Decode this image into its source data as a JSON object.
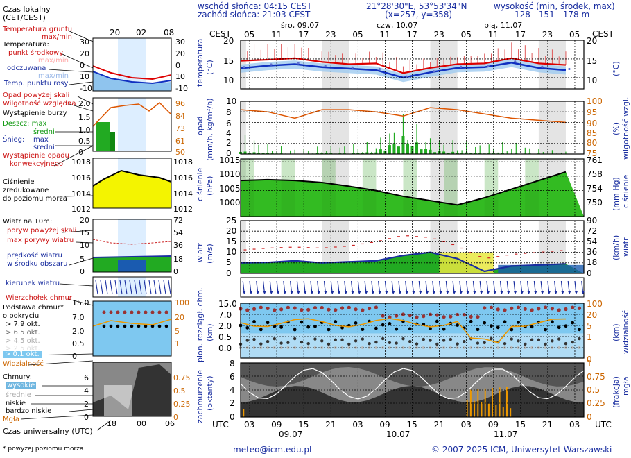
{
  "header": {
    "sunrise": "wschód słońca: 04:15 CEST",
    "sunset": "zachód słońca: 21:03 CEST",
    "coords": "21°28'30\"E, 53°53'34\"N",
    "grid": "(x=257, y=358)",
    "elev_title": "wysokość (min, środek, max)",
    "elev_values": "128 - 151 - 178 m"
  },
  "time": {
    "top_label": "CEST",
    "days_top": [
      "śro, 09.07",
      "czw, 10.07",
      "pią, 11.07"
    ],
    "hours_top": [
      "05",
      "11",
      "17",
      "23",
      "05",
      "11",
      "17",
      "23",
      "05",
      "11",
      "17",
      "23",
      "05"
    ],
    "bottom_label": "UTC",
    "hours_bottom": [
      "03",
      "09",
      "15",
      "21",
      "03",
      "09",
      "15",
      "21",
      "03",
      "09",
      "15",
      "21",
      "03"
    ],
    "days_bottom": [
      "09.07",
      "10.07",
      "11.07"
    ]
  },
  "legend": {
    "local_time": "Czas lokalny",
    "local_time2": "(CET/CEST)",
    "local_ticks": [
      "20",
      "02",
      "08"
    ],
    "soil_temp": "Temperatura gruntu",
    "soil_temp2": "max/min",
    "temperature": "Temperatura:",
    "midpoint": "punkt środkowy",
    "maxmin": "max/min",
    "feels": "odczuwana",
    "feels_maxmin": "max/min",
    "dewpoint": "Temp. punktu rosy",
    "temp_ticks": [
      "30",
      "20",
      "10",
      "0",
      "-10"
    ],
    "precip_above": "Opad powyżej skali",
    "humidity": "Wilgotność względna",
    "storm": "Wystąpienie burzy",
    "rain": "Deszcz: max",
    "rain_avg": "średni",
    "snow": "Śnieg:",
    "snow_max": "max",
    "snow_avg": "średni",
    "precip_occ": "Wystąpienie opadu",
    "precip_occ2": "konwekcyjnego",
    "precip_ticks": [
      "2.0",
      "1.5",
      "1.0",
      "0.5",
      "0"
    ],
    "hum_ticks": [
      "96",
      "84",
      "73",
      "61",
      "50"
    ],
    "pressure": "Ciśnienie",
    "pressure2": "zredukowane",
    "pressure3": "do poziomu morza",
    "pres_ticks": [
      "1018",
      "1016",
      "1014",
      "1012"
    ],
    "wind_title": "Wiatr na 10m:",
    "gust_above": "poryw powyżej skali",
    "gust_max": "max porywy wiatru",
    "wind_speed": "prędkość wiatru",
    "wind_speed2": "w środku obszaru",
    "wind_ticks": [
      "20",
      "15",
      "10",
      "5",
      "0"
    ],
    "wind_ticks_r": [
      "72",
      "54",
      "36",
      "18",
      "0"
    ],
    "wind_dir": "kierunek wiatru",
    "cloud_top": "Wierzchołek chmur",
    "cloud_base": "Podstawa chmur*",
    "cloud_base2": "o pokryciu",
    "okt1": "> 7.9 okt.",
    "okt2": "> 6.5 okt.",
    "okt3": "> 4.5 okt.",
    "okt4": "> 2.5 okt.",
    "okt5": "> 0.1 okt.",
    "cb_ticks": [
      "15.0",
      "7.0",
      "2.0",
      "0.5",
      "0"
    ],
    "vis_ticks": [
      "100",
      "20",
      "5",
      "1"
    ],
    "visibility": "Widzialność",
    "clouds": "Chmury:",
    "c_high": "wysokie",
    "c_mid": "średnie",
    "c_low": "niskie",
    "c_vlow": "bardzo niskie",
    "fog": "Mgła",
    "cl_ticks": [
      "6",
      "4",
      "2",
      "0"
    ],
    "fog_ticks": [
      "0.75",
      "0.5",
      "0.25",
      "0"
    ],
    "utc_label": "Czas uniwersalny (UTC)",
    "utc_ticks": [
      "18",
      "00",
      "06"
    ],
    "footnote": "* powyżej poziomu morza"
  },
  "axis_titles": {
    "temp": "temperatura",
    "temp_unit": "(°C)",
    "precip": "opad",
    "precip_unit": "(mm/h, kg/m²/h)",
    "hum": "wilgotność wzgl.",
    "hum_unit": "(%)",
    "pres": "ciśnienie",
    "pres_unit": "(hPa)",
    "pres_r": "ciśnienie",
    "pres_r_unit": "(mm Hg)",
    "wind": "wiatr",
    "wind_unit": "(m/s)",
    "wind_r": "wiatr",
    "wind_r_unit": "(km/h)",
    "cloudbase": "pion. rozciągł. chm.",
    "cloudbase_unit": "(km)",
    "vis": "widzialność",
    "vis_unit": "(km)",
    "cover": "zachmurzenie",
    "cover_unit": "(oktanty)",
    "fog": "mgła",
    "fog_unit": "(frakcja)"
  },
  "ticks": {
    "temp_l": [
      "20",
      "15",
      "10"
    ],
    "temp_r": [
      "20",
      "15",
      "10"
    ],
    "precip_l": [
      "10",
      "8",
      "6",
      "4",
      "2",
      "0"
    ],
    "hum_r": [
      "100",
      "95",
      "90",
      "85",
      "80",
      "75"
    ],
    "pres_l": [
      "1015",
      "1010",
      "1005",
      "1000"
    ],
    "pres_r": [
      "761",
      "758",
      "754",
      "750"
    ],
    "wind_l": [
      "25",
      "20",
      "15",
      "10",
      "5",
      "0"
    ],
    "wind_r": [
      "90",
      "72",
      "54",
      "36",
      "18",
      "0"
    ],
    "cb_l": [
      "15.0",
      "7.0",
      "2.0",
      "0.5",
      "0.0"
    ],
    "vis_r": [
      "100",
      "20",
      "5",
      "1",
      "0"
    ],
    "cov_l": [
      "8",
      "6",
      "4",
      "2",
      "0"
    ],
    "fog_r": [
      "1",
      "0.75",
      "0.5",
      "0.25",
      "0"
    ]
  },
  "footer": {
    "email": "meteo@icm.edu.pl",
    "copyright": "© 2007-2025 ICM, Uniwersytet Warszawski"
  },
  "colors": {
    "temp_red": "#dd0000",
    "feels_blue": "#1030c0",
    "precip_green": "#22aa22",
    "humidity_orange": "#dd5500",
    "pressure_green": "#33bb22",
    "wind_green": "#22aa22",
    "cloud_top_red": "#993333",
    "vis_orange": "#ee9900",
    "sky_blue": "#7ec8f0"
  },
  "chart_data": [
    {
      "type": "line",
      "title": "temperatura",
      "ylabel": "(°C)",
      "ylim": [
        7,
        20
      ],
      "x_hours": [
        0,
        6,
        12,
        18,
        24,
        30,
        36,
        42,
        48,
        54,
        60,
        66,
        72
      ],
      "series": [
        {
          "name": "punkt środkowy",
          "values": [
            14.5,
            14.8,
            15.2,
            14.2,
            13.6,
            13.8,
            11.2,
            12.6,
            13.6,
            13.8,
            15.2,
            13.8,
            13.4
          ]
        },
        {
          "name": "odczuwana",
          "values": [
            12.5,
            13.2,
            13.6,
            12.8,
            12.4,
            12.0,
            10.0,
            11.4,
            12.6,
            12.8,
            14.0,
            12.6,
            12.0
          ]
        },
        {
          "name": "max/min",
          "values": [
            19.0,
            19.5,
            20.0,
            18.5,
            17.0,
            17.5,
            15.0,
            16.0,
            17.0,
            17.5,
            20.0,
            18.0,
            17.5
          ]
        }
      ]
    },
    {
      "type": "bar",
      "title": "opad",
      "ylabel": "(mm/h, kg/m²/h)",
      "ylim": [
        0,
        10
      ],
      "x_hours": [
        0,
        6,
        12,
        18,
        24,
        30,
        36,
        42,
        48,
        54,
        60,
        66,
        72
      ],
      "series": [
        {
          "name": "średni",
          "values": [
            0.5,
            0.2,
            0.0,
            0.2,
            0.1,
            0.4,
            3.2,
            0.8,
            0.3,
            0.2,
            0.1,
            0.1,
            0.0
          ]
        },
        {
          "name": "max",
          "values": [
            4.5,
            2.0,
            1.0,
            1.5,
            2.0,
            2.5,
            8.0,
            3.5,
            2.5,
            2.0,
            2.5,
            1.0,
            0.5
          ]
        },
        {
          "name": "wilgotność wzgl.",
          "values": [
            96,
            95,
            92,
            96,
            96,
            95,
            93,
            97,
            96,
            94,
            92,
            91,
            90
          ]
        }
      ]
    },
    {
      "type": "area",
      "title": "ciśnienie",
      "ylabel": "(hPa)",
      "ylim": [
        996,
        1016
      ],
      "x_hours": [
        0,
        6,
        12,
        18,
        24,
        30,
        36,
        42,
        48,
        54,
        60,
        66,
        72
      ],
      "series": [
        {
          "name": "ciśnienie",
          "values": [
            1008.5,
            1008.8,
            1008.5,
            1007.8,
            1006.5,
            1005.0,
            1003.0,
            1001.5,
            1000.0,
            1002.5,
            1005.5,
            1008.5,
            1011.5
          ]
        }
      ]
    },
    {
      "type": "area",
      "title": "wiatr",
      "ylabel": "(m/s)",
      "ylim": [
        0,
        25
      ],
      "x_hours": [
        0,
        6,
        12,
        18,
        24,
        30,
        36,
        42,
        48,
        54,
        60,
        66,
        72
      ],
      "series": [
        {
          "name": "prędkość wiatru",
          "values": [
            5.0,
            5.2,
            6.0,
            5.0,
            5.5,
            6.0,
            8.5,
            10.0,
            7.0,
            1.0,
            3.5,
            4.0,
            4.5
          ]
        },
        {
          "name": "max porywy wiatru",
          "values": [
            11,
            12,
            12.5,
            12,
            13,
            15,
            18,
            17,
            13,
            7,
            9,
            10,
            11
          ]
        }
      ]
    }
  ]
}
